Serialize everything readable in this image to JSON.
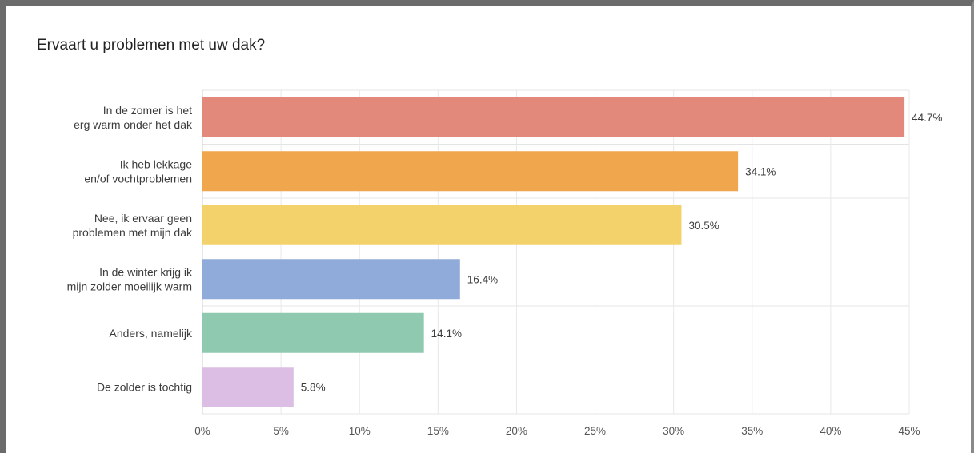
{
  "chart_data": {
    "type": "bar",
    "orientation": "horizontal",
    "title": "Ervaart u problemen met uw dak?",
    "categories": [
      [
        "In de zomer is het",
        "erg warm onder het dak"
      ],
      [
        "Ik heb lekkage",
        "en/of vochtproblemen"
      ],
      [
        "Nee, ik ervaar geen",
        "problemen met mijn dak"
      ],
      [
        "In de winter krijg ik",
        "mijn zolder moeilijk warm"
      ],
      [
        "Anders, namelijk"
      ],
      [
        "De zolder is tochtig"
      ]
    ],
    "values": [
      44.7,
      34.1,
      30.5,
      16.4,
      14.1,
      5.8
    ],
    "value_labels": [
      "44.7%",
      "34.1%",
      "30.5%",
      "16.4%",
      "14.1%",
      "5.8%"
    ],
    "colors": [
      "#e3897c",
      "#f0a64c",
      "#f3d26c",
      "#90abd9",
      "#8fcab0",
      "#dcbde3"
    ],
    "xlim": [
      0,
      45
    ],
    "xticks": [
      "0%",
      "5%",
      "10%",
      "15%",
      "20%",
      "25%",
      "30%",
      "35%",
      "40%",
      "45%"
    ],
    "grid": true
  }
}
